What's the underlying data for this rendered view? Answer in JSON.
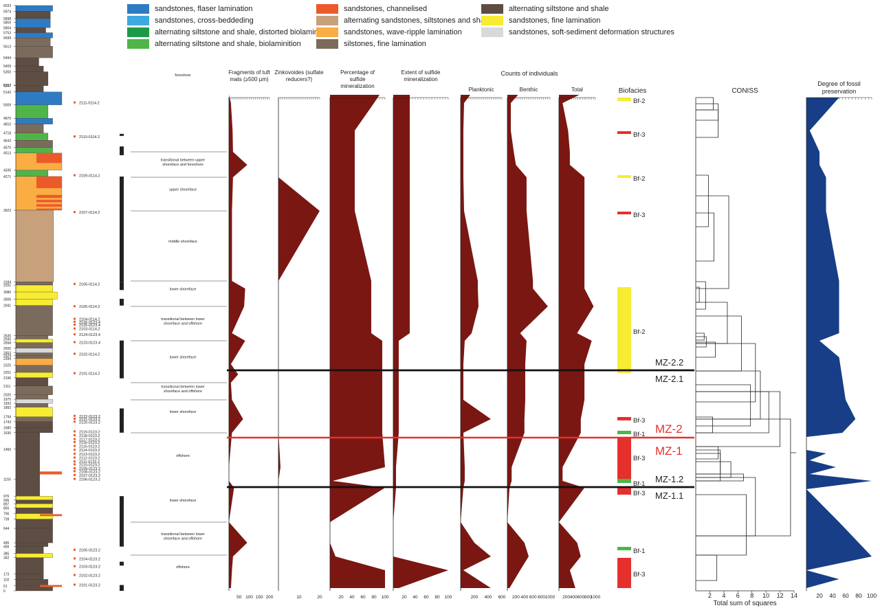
{
  "colors": {
    "flaser": "#2f7bc2",
    "crossbed": "#3ea9df",
    "distorted": "#1d9a48",
    "biolam": "#4fb549",
    "channel": "#ec5a2b",
    "altsand": "#c7a17b",
    "wave": "#f9ad43",
    "silt": "#7b6b5c",
    "altshale": "#5e4d43",
    "fine": "#f7ec32",
    "softsed": "#d9d9d9",
    "curve": "#7b1712",
    "preservation": "#173e87",
    "bf2": "#f7ec32",
    "bf3": "#e5302e",
    "bf1": "#4fb549",
    "mzred": "#e5302e"
  },
  "legend": [
    {
      "label": "sandstones, flaser lamination",
      "color": "#2f7bc2"
    },
    {
      "label": "sandstones, cross-beddeding",
      "color": "#3ea9df"
    },
    {
      "label": "alternating siltstone and shale, distorted biolamination",
      "color": "#1d9a48"
    },
    {
      "label": "alternating siltstone and shale, biolaminition",
      "color": "#4fb549"
    },
    {
      "label": "sandstones, channelised",
      "color": "#ec5a2b"
    },
    {
      "label": "alternating sandstones, siltstones and shales",
      "color": "#c7a17b"
    },
    {
      "label": "sandstones, wave-ripple lamination",
      "color": "#f9ad43"
    },
    {
      "label": "silstones, fine lamination",
      "color": "#7b6b5c"
    },
    {
      "label": "alternating siltstone and shale",
      "color": "#5e4d43"
    },
    {
      "label": "sandstones, fine lamination",
      "color": "#f7ec32"
    },
    {
      "label": "sandstones, soft-sediment deformation structures",
      "color": "#d9d9d9"
    }
  ],
  "chart_data": {
    "type": "area",
    "depth_ticks": [
      6033,
      5974,
      5898,
      5859,
      5804,
      5753,
      5699,
      5613,
      5494,
      5409,
      5350,
      5207,
      5212,
      5142,
      5009,
      4870,
      4810,
      4718,
      4643,
      4570,
      4513,
      4336,
      4271,
      3923,
      3184,
      3151,
      3080,
      3006,
      2941,
      2630,
      2595,
      2558,
      2500,
      2453,
      2424,
      2394,
      2325,
      2251,
      2196,
      2111,
      2020,
      1975,
      1932,
      1892,
      1794,
      1743,
      1680,
      1630,
      1460,
      1150,
      976,
      936,
      897,
      855,
      796,
      739,
      644,
      495,
      456,
      385,
      342,
      173,
      118,
      51,
      0
    ],
    "sample_labels": [
      "2111-0114.2",
      "2110-0114.2",
      "2109-0114.2",
      "2107-0114.2",
      "2106-0114.2",
      "2105-0114.2",
      "2104-0114.2",
      "2126-0123.4",
      "2125-0123.4",
      "2103-0114.2",
      "2124-0123.4",
      "2123-0123.4",
      "2102-0114.2",
      "2101-0114.2",
      "2122-0123.2",
      "2121-0123.2",
      "2120-0123.2",
      "2119-0123.2",
      "2118-0123.2",
      "2117-0123.2",
      "2116-0123.2",
      "2115-0123.2",
      "2114-0123.2",
      "2113-0123.2",
      "2112-0123.2",
      "2111-0123.2",
      "2110-0123.2",
      "2109-0123.2",
      "2108-0123.2",
      "2107-0123.2",
      "2106-0123.2",
      "2105-0123.2",
      "2104-0123.2",
      "2103-0123.2",
      "2102-0123.2",
      "2101-0123.2"
    ],
    "facies_labels": [
      "foreshore",
      "transitional between upper shoreface and foreshore",
      "upper shoreface",
      "middle shoreface",
      "lower shoreface",
      "transitional between lower shoreface and offshore",
      "lower shoreface",
      "transitional between lower shoreface and offshore",
      "lower shoreface",
      "offshore",
      "lower shoreface",
      "transitional between lower shoreface and offshore",
      "offshore"
    ],
    "columns": [
      {
        "title": "Fragments of tuft mats (≥500 µm)",
        "ticks": [
          "50",
          "100",
          "150",
          "200"
        ],
        "xmax": 200
      },
      {
        "title": "Zinkovoides (sulfate reducers?)",
        "ticks": [
          "10",
          "20"
        ],
        "xmax": 20
      },
      {
        "title": "Percentage of sulfide mineralization",
        "ticks": [
          "20",
          "40",
          "60",
          "80",
          "100"
        ],
        "xmax": 100
      },
      {
        "title": "Extent of sulfide mineralization",
        "ticks": [
          "20",
          "40",
          "60",
          "80",
          "100"
        ],
        "xmax": 100
      },
      {
        "title": "Planktonic",
        "ticks": [
          "200",
          "400",
          "600"
        ],
        "xmax": 600
      },
      {
        "title": "Benthic",
        "ticks": [
          "200",
          "400",
          "600",
          "800",
          "1000"
        ],
        "xmax": 1000
      },
      {
        "title": "Total",
        "ticks": [
          "200",
          "400",
          "600",
          "800",
          "1000"
        ],
        "xmax": 1000
      }
    ],
    "counts_title": "Counts of individuals",
    "biofacies_title": "Biofacies",
    "biofacies": [
      "Bf-2",
      "Bf-3",
      "Bf-2",
      "Bf-3",
      "Bf-2",
      "Bf-3",
      "Bf-1",
      "Bf-3",
      "Bf-1",
      "Bf-3",
      "Bf-1",
      "Bf-3"
    ],
    "zones": [
      "MZ-2.2",
      "MZ-2.1",
      "MZ-2",
      "MZ-1",
      "MZ-1.2",
      "MZ-1.1"
    ],
    "coniss": {
      "title": "CONISS",
      "xlabel": "Total sum of squares",
      "ticks": [
        "2",
        "4",
        "6",
        "8",
        "10",
        "12",
        "14"
      ],
      "xmax": 14
    },
    "preservation": {
      "title": "Degree of fossil preservation",
      "ticks": [
        "20",
        "40",
        "60",
        "80",
        "100"
      ],
      "xmax": 100
    }
  }
}
